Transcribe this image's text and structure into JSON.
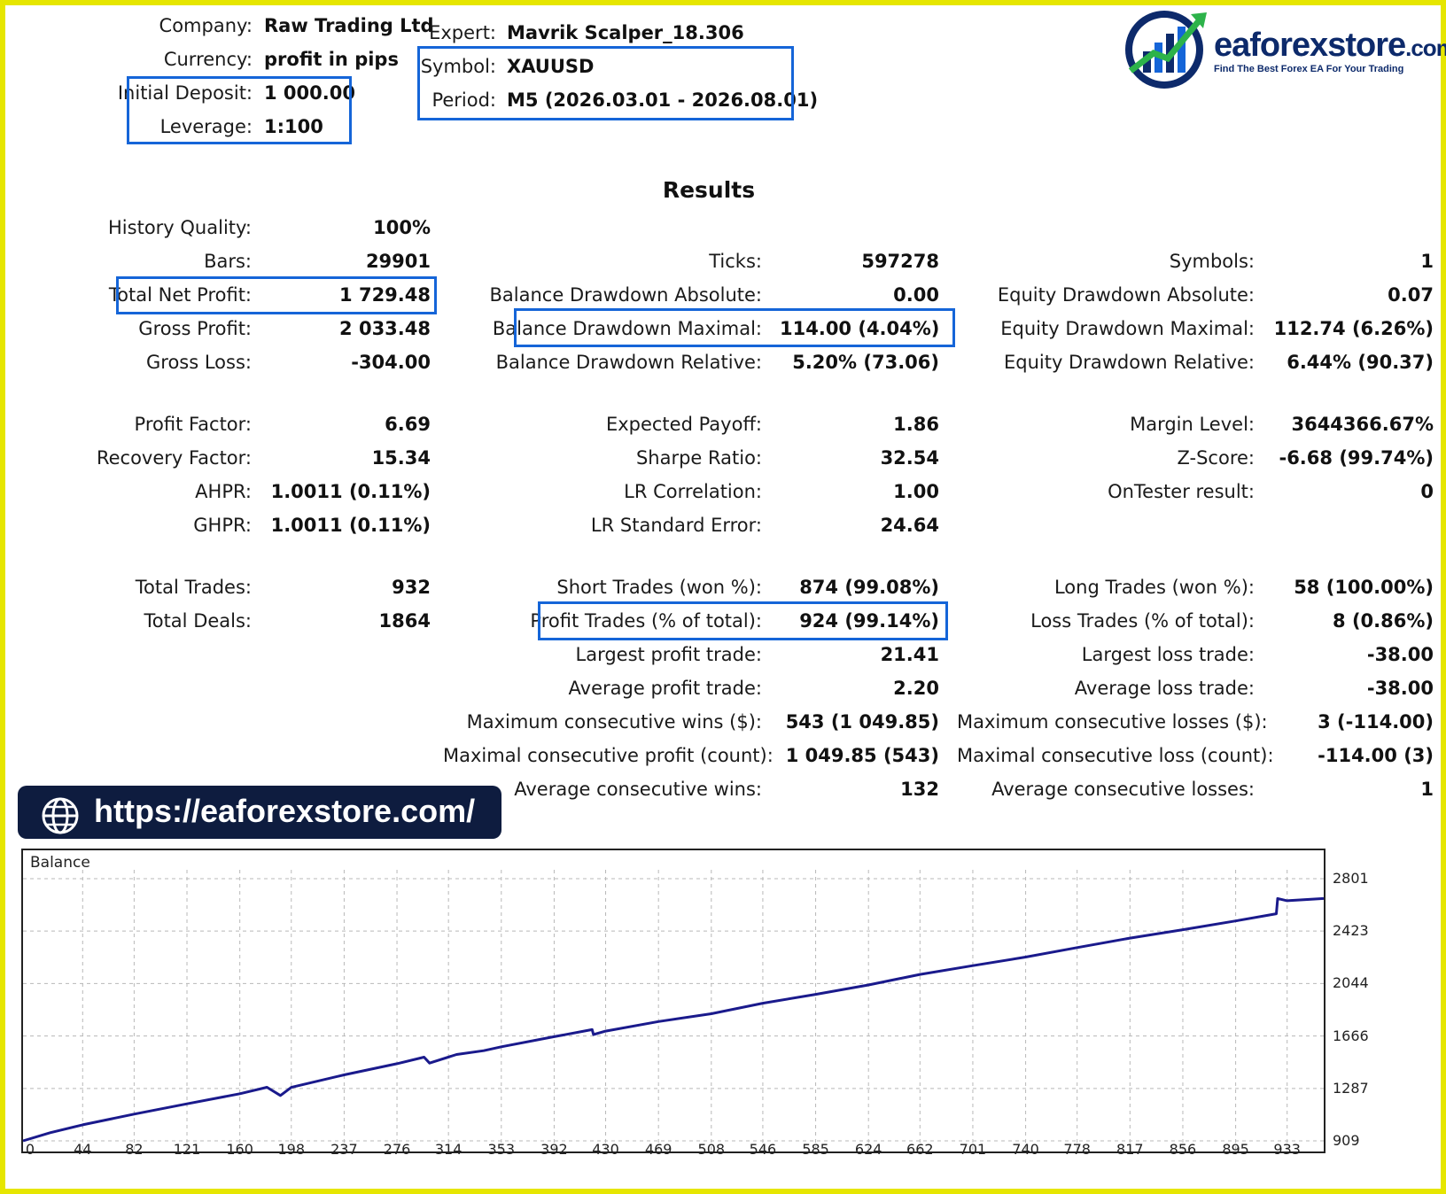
{
  "header": {
    "company_label": "Company:",
    "company_value": "Raw Trading Ltd",
    "currency_label": "Currency:",
    "currency_value": "profit in pips",
    "deposit_label": "Initial Deposit:",
    "deposit_value": "1 000.00",
    "leverage_label": "Leverage:",
    "leverage_value": "1:100",
    "expert_label": "Expert:",
    "expert_value": "Mavrik Scalper_18.306",
    "symbol_label": "Symbol:",
    "symbol_value": "XAUUSD",
    "period_label": "Period:",
    "period_value": "M5 (2026.03.01 - 2026.08.01)"
  },
  "logo": {
    "brand": "eaforexstore",
    "tld": ".com",
    "tagline": "Find The Best Forex EA For Your Trading"
  },
  "results_title": "Results",
  "col1": [
    {
      "label": "History Quality:",
      "value": "100%"
    },
    {
      "label": "Bars:",
      "value": "29901"
    },
    {
      "label": "Total Net Profit:",
      "value": "1 729.48"
    },
    {
      "label": "Gross Profit:",
      "value": "2 033.48"
    },
    {
      "label": "Gross Loss:",
      "value": "-304.00"
    },
    {
      "label": "Profit Factor:",
      "value": "6.69"
    },
    {
      "label": "Recovery Factor:",
      "value": "15.34"
    },
    {
      "label": "AHPR:",
      "value": "1.0011 (0.11%)"
    },
    {
      "label": "GHPR:",
      "value": "1.0011 (0.11%)"
    },
    {
      "label": "Total Trades:",
      "value": "932"
    },
    {
      "label": "Total Deals:",
      "value": "1864"
    }
  ],
  "col2": [
    {
      "label": "Ticks:",
      "value": "597278"
    },
    {
      "label": "Balance Drawdown Absolute:",
      "value": "0.00"
    },
    {
      "label": "Balance Drawdown Maximal:",
      "value": "114.00 (4.04%)"
    },
    {
      "label": "Balance Drawdown Relative:",
      "value": "5.20% (73.06)"
    },
    {
      "label": "Expected Payoff:",
      "value": "1.86"
    },
    {
      "label": "Sharpe Ratio:",
      "value": "32.54"
    },
    {
      "label": "LR Correlation:",
      "value": "1.00"
    },
    {
      "label": "LR Standard Error:",
      "value": "24.64"
    },
    {
      "label": "Short Trades (won %):",
      "value": "874 (99.08%)"
    },
    {
      "label": "Profit Trades (% of total):",
      "value": "924 (99.14%)"
    },
    {
      "label": "Largest profit trade:",
      "value": "21.41"
    },
    {
      "label": "Average profit trade:",
      "value": "2.20"
    },
    {
      "label": "Maximum consecutive wins ($):",
      "value": "543 (1 049.85)"
    },
    {
      "label": "Maximal consecutive profit (count):",
      "value": "1 049.85 (543)"
    },
    {
      "label": "Average consecutive wins:",
      "value": "132"
    }
  ],
  "col3": [
    {
      "label": "Symbols:",
      "value": "1"
    },
    {
      "label": "Equity Drawdown Absolute:",
      "value": "0.07"
    },
    {
      "label": "Equity Drawdown Maximal:",
      "value": "112.74 (6.26%)"
    },
    {
      "label": "Equity Drawdown Relative:",
      "value": "6.44% (90.37)"
    },
    {
      "label": "Margin Level:",
      "value": "3644366.67%"
    },
    {
      "label": "Z-Score:",
      "value": "-6.68 (99.74%)"
    },
    {
      "label": "OnTester result:",
      "value": "0"
    },
    {
      "label": "Long Trades (won %):",
      "value": "58 (100.00%)"
    },
    {
      "label": "Loss Trades (% of total):",
      "value": "8 (0.86%)"
    },
    {
      "label": "Largest loss trade:",
      "value": "-38.00"
    },
    {
      "label": "Average loss trade:",
      "value": "-38.00"
    },
    {
      "label": "Maximum consecutive losses ($):",
      "value": "3 (-114.00)"
    },
    {
      "label": "Maximal consecutive loss (count):",
      "value": "-114.00 (3)"
    },
    {
      "label": "Average consecutive losses:",
      "value": "1"
    }
  ],
  "url_banner": "https://eaforexstore.com/",
  "colors": {
    "highlight": "#1565d8",
    "line": "#1a1a8c",
    "frame": "#e6e600",
    "banner": "#0e1c3f"
  },
  "chart_data": {
    "type": "line",
    "title": "Balance",
    "yticks": [
      "2801",
      "2423",
      "2044",
      "1666",
      "1287",
      "909"
    ],
    "xticks": [
      "0",
      "44",
      "82",
      "121",
      "160",
      "198",
      "237",
      "276",
      "314",
      "353",
      "392",
      "430",
      "469",
      "508",
      "546",
      "585",
      "624",
      "662",
      "701",
      "740",
      "778",
      "817",
      "856",
      "895",
      "933"
    ],
    "xlim": [
      0,
      960
    ],
    "ylim": [
      909,
      2801
    ],
    "grid": true,
    "series": [
      {
        "x": [
          0,
          20,
          44,
          82,
          121,
          160,
          180,
          190,
          198,
          237,
          276,
          296,
          300,
          320,
          340,
          353,
          392,
          420,
          421,
          430,
          469,
          508,
          546,
          585,
          624,
          662,
          701,
          740,
          778,
          817,
          856,
          895,
          925,
          926,
          933,
          960
        ],
        "y": [
          909,
          968,
          1025,
          1102,
          1176,
          1249,
          1296,
          1236,
          1295,
          1385,
          1466,
          1513,
          1470,
          1532,
          1560,
          1588,
          1661,
          1712,
          1676,
          1701,
          1770,
          1826,
          1902,
          1966,
          2034,
          2110,
          2173,
          2235,
          2304,
          2372,
          2433,
          2496,
          2548,
          2658,
          2642,
          2658
        ]
      }
    ]
  }
}
